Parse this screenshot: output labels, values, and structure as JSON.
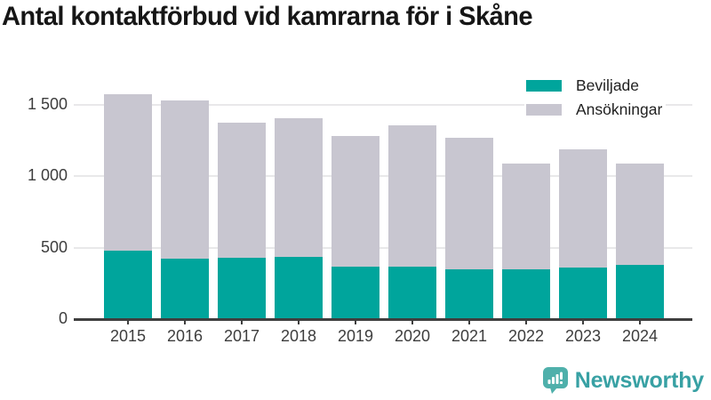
{
  "title": "Antal kontaktförbud vid kamrarna för i Skåne",
  "colors": {
    "beviljade": "#00a59c",
    "ansokningar": "#c8c6d0",
    "gridline": "#e9e8ea",
    "axis": "#3f3f3f",
    "brand_icon": "#4fb0ab",
    "brand_text": "#38a1a4"
  },
  "legend": {
    "items": [
      {
        "label": "Beviljade",
        "color": "#00a59c"
      },
      {
        "label": "Ansökningar",
        "color": "#c8c6d0"
      }
    ]
  },
  "chart_data": {
    "type": "bar",
    "bar_mode": "overlay",
    "categories": [
      "2015",
      "2016",
      "2017",
      "2018",
      "2019",
      "2020",
      "2021",
      "2022",
      "2023",
      "2024"
    ],
    "series": [
      {
        "name": "Beviljade",
        "values": [
          480,
          425,
          430,
          435,
          365,
          370,
          350,
          350,
          360,
          380
        ]
      },
      {
        "name": "Ansökningar",
        "values": [
          1575,
          1530,
          1375,
          1405,
          1285,
          1355,
          1270,
          1090,
          1190,
          1090
        ]
      }
    ],
    "title": "Antal kontaktförbud vid kamrarna för i Skåne",
    "xlabel": "",
    "ylabel": "",
    "ylim": [
      0,
      1700
    ],
    "yticks": [
      0,
      500,
      1000,
      1500
    ],
    "ytick_labels": [
      "0",
      "500",
      "1 000",
      "1 500"
    ],
    "grid": true,
    "legend_position": "top-right"
  },
  "branding": {
    "name": "Newsworthy"
  }
}
